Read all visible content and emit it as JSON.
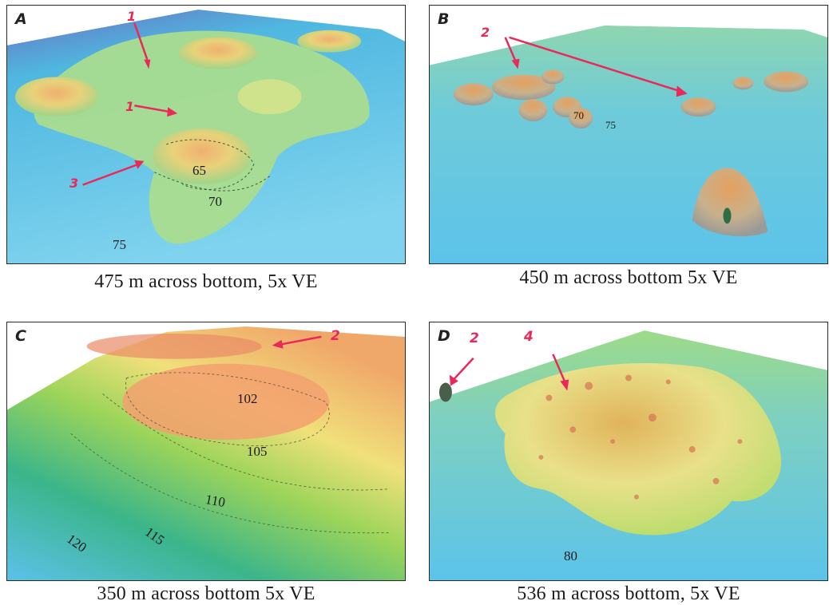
{
  "panels": {
    "a": {
      "letter": "A",
      "caption": "475 m across bottom, 5x VE",
      "contours": [
        "65",
        "70",
        "75"
      ],
      "markers": [
        "1",
        "1",
        "3"
      ]
    },
    "b": {
      "letter": "B",
      "caption": "450 m across bottom  5x VE",
      "contours": [
        "70",
        "75"
      ],
      "markers": [
        "2"
      ]
    },
    "c": {
      "letter": "C",
      "caption": "350 m across bottom 5x VE",
      "contours": [
        "102",
        "105",
        "110",
        "115",
        "120"
      ],
      "markers": [
        "2"
      ]
    },
    "d": {
      "letter": "D",
      "caption": "536 m across bottom, 5x VE",
      "contours": [
        "80"
      ],
      "markers": [
        "2",
        "4"
      ]
    }
  },
  "colors": {
    "water": "#5fc7e8",
    "shelf": "#8fd6b0",
    "mound": "#e9b06a",
    "peak": "#e07a55",
    "arrow": "#e8295a"
  }
}
